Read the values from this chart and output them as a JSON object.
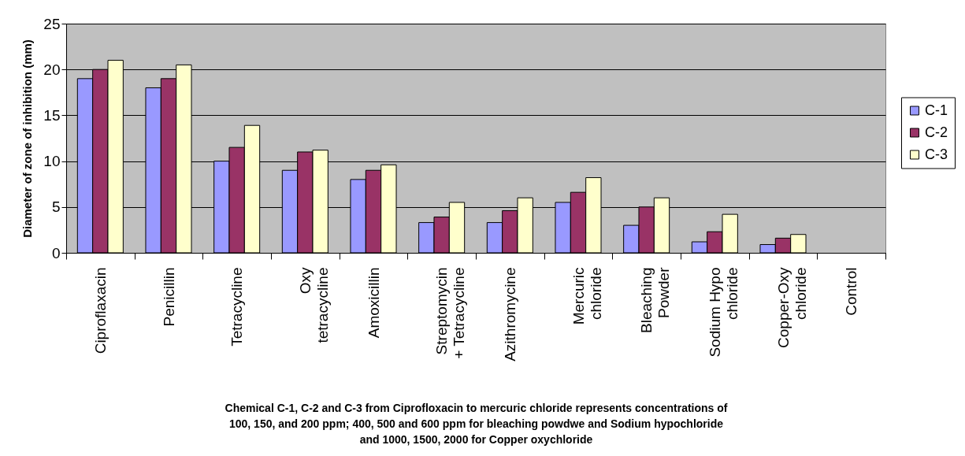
{
  "chart_data": {
    "type": "bar",
    "xlabel": "Chemical C-1, C-2 and C-3 from Ciprofloxacin to mercuric chloride represents concentrations of\n100, 150, and 200 ppm; 400, 500 and 600 ppm for bleaching powdwe and Sodium hypochloride\nand 1000, 1500, 2000 for Copper oxychloride",
    "ylabel": "Diameter of zone of inhibition (mm)",
    "categories": [
      "Ciproflaxacin",
      "Penicillin",
      "Tetracycline",
      "Oxy\ntetracycline",
      "Amoxicillin",
      "Streptomycin\n+ Tetracycline",
      "Azithromycine",
      "Mercuric\nchloride",
      "Bleaching\nPowder",
      "Sodium Hypo\nchloride",
      "Copper-Oxy\nchloride",
      "Control"
    ],
    "series": [
      {
        "name": "C-1",
        "color": "#9999ff",
        "values": [
          19,
          18,
          10,
          9,
          8,
          3.3,
          3.3,
          5.5,
          3,
          1.2,
          0.9,
          null
        ]
      },
      {
        "name": "C-2",
        "color": "#993366",
        "values": [
          20,
          19,
          11.5,
          11,
          9,
          3.9,
          4.6,
          6.6,
          5,
          2.3,
          1.6,
          null
        ]
      },
      {
        "name": "C-3",
        "color": "#ffffcc",
        "values": [
          21,
          20.5,
          13.9,
          11.2,
          9.6,
          5.5,
          6,
          8.2,
          6,
          4.2,
          2,
          null
        ]
      }
    ],
    "ylim": [
      0,
      25
    ],
    "yticks": [
      0,
      5,
      10,
      15,
      20,
      25
    ],
    "grid": "y",
    "legend": "right"
  }
}
